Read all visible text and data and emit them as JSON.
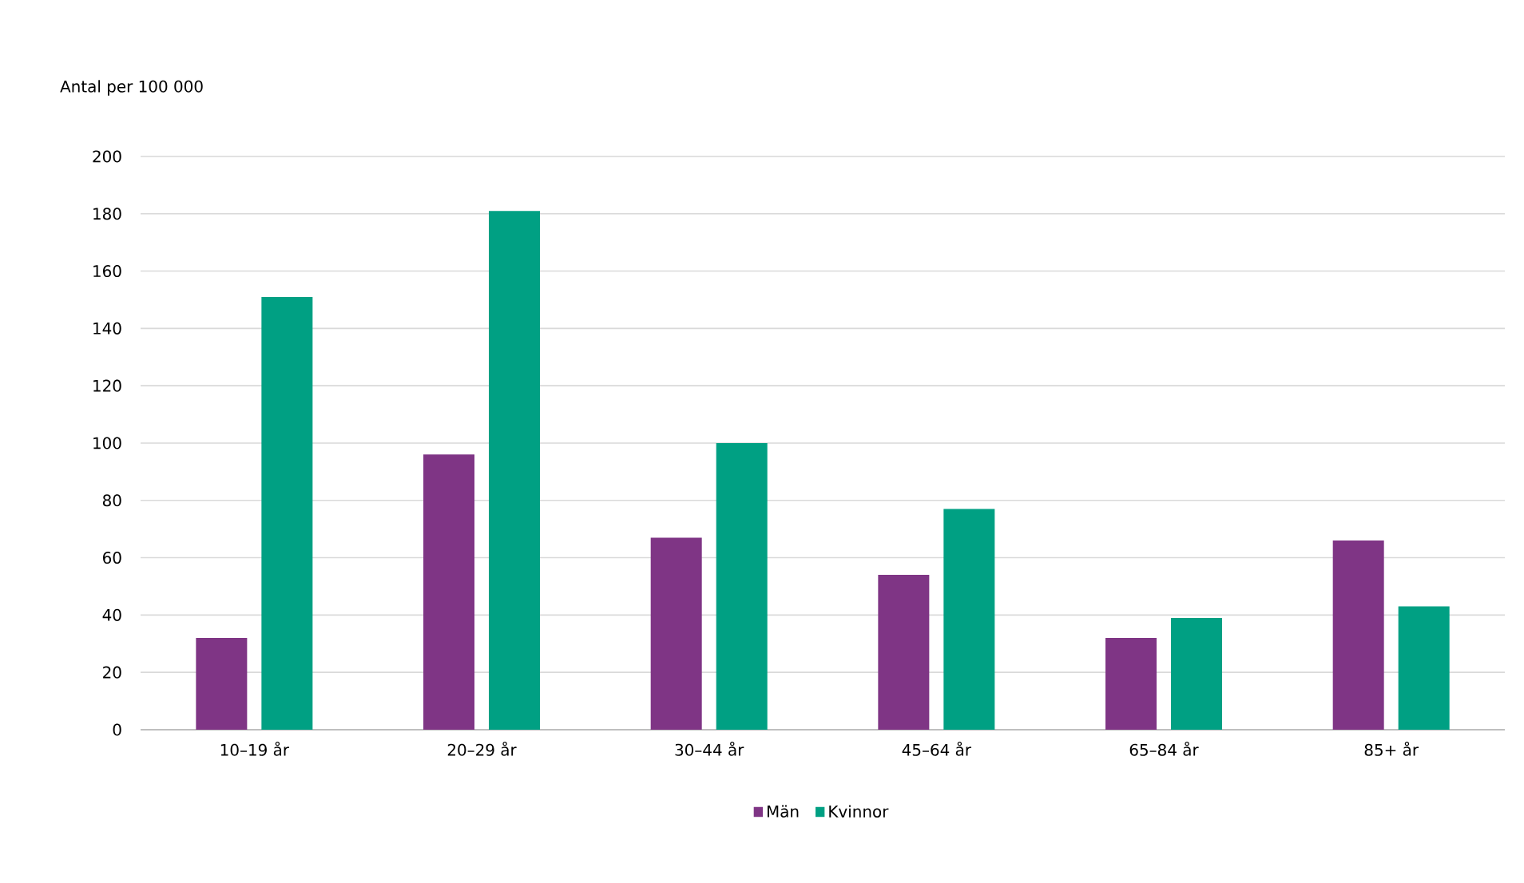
{
  "chart_data": {
    "type": "bar",
    "ylabel": "Antal per 100 000",
    "categories": [
      "10–19 år",
      "20–29 år",
      "30–44 år",
      "45–64 år",
      "65–84 år",
      "85+ år"
    ],
    "series": [
      {
        "name": "Män",
        "color": "#7f3585",
        "values": [
          32,
          96,
          67,
          54,
          32,
          66
        ]
      },
      {
        "name": "Kvinnor",
        "color": "#00a083",
        "values": [
          151,
          181,
          100,
          77,
          39,
          43
        ]
      }
    ],
    "ylim": [
      0,
      200
    ],
    "yticks": [
      0,
      20,
      40,
      60,
      80,
      100,
      120,
      140,
      160,
      180,
      200
    ],
    "grid": "y",
    "legend": "bottom"
  }
}
